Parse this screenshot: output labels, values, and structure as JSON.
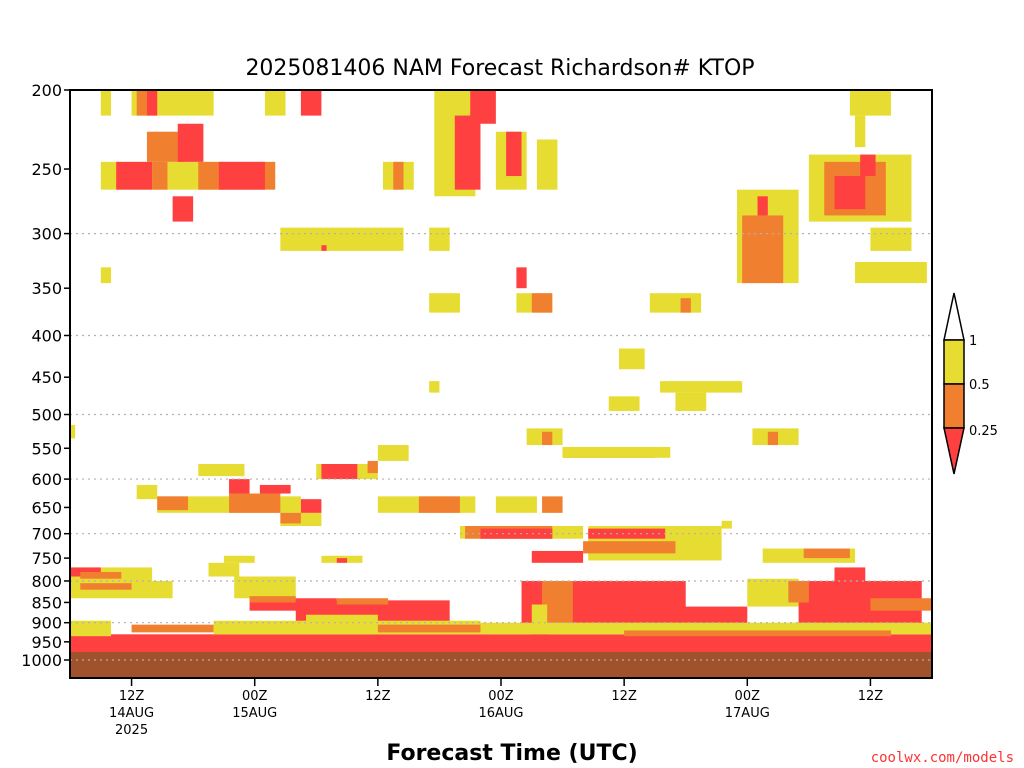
{
  "chart_data": {
    "type": "heatmap",
    "title": "2025081406 NAM Forecast Richardson# KTOP",
    "xlabel": "Forecast Time (UTC)",
    "ylabel": "",
    "credit": "coolwx.com/models",
    "credit_color": "#ff3333",
    "y_axis": {
      "scale": "log-pressure",
      "range": [
        1000,
        200
      ],
      "ticks": [
        200,
        250,
        300,
        350,
        400,
        450,
        500,
        550,
        600,
        650,
        700,
        750,
        800,
        850,
        900,
        950,
        1000
      ],
      "gridlines": [
        300,
        400,
        500,
        600,
        700,
        800,
        900,
        1000
      ]
    },
    "x_axis": {
      "unit": "hours since 2025-08-14 06Z",
      "range": [
        0,
        84
      ],
      "ticks": [
        {
          "hour": 6,
          "lines": [
            "12Z",
            "14AUG",
            "2025"
          ]
        },
        {
          "hour": 18,
          "lines": [
            "00Z",
            "15AUG"
          ]
        },
        {
          "hour": 30,
          "lines": [
            "12Z"
          ]
        },
        {
          "hour": 42,
          "lines": [
            "00Z",
            "16AUG"
          ]
        },
        {
          "hour": 54,
          "lines": [
            "12Z"
          ]
        },
        {
          "hour": 66,
          "lines": [
            "00Z",
            "17AUG"
          ]
        },
        {
          "hour": 78,
          "lines": [
            "12Z"
          ]
        }
      ]
    },
    "legend": {
      "position": "right",
      "colors": {
        "lt_025": "#ff4040",
        "025_05": "#f08030",
        "05_1": "#e6dc32",
        "ground": "#a0522d"
      },
      "labels": [
        "1",
        "0.5",
        "0.25"
      ]
    },
    "regions": [
      {
        "class": "05_1",
        "t": [
          3,
          4
        ],
        "p": [
          200,
          215
        ]
      },
      {
        "class": "05_1",
        "t": [
          6,
          14
        ],
        "p": [
          200,
          215
        ]
      },
      {
        "class": "025_05",
        "t": [
          6.5,
          7.5
        ],
        "p": [
          200,
          215
        ]
      },
      {
        "class": "lt_025",
        "t": [
          7.5,
          8.5
        ],
        "p": [
          200,
          215
        ]
      },
      {
        "class": "05_1",
        "t": [
          19,
          21
        ],
        "p": [
          200,
          215
        ]
      },
      {
        "class": "lt_025",
        "t": [
          22.5,
          24.5
        ],
        "p": [
          200,
          215
        ]
      },
      {
        "class": "05_1",
        "t": [
          3,
          15
        ],
        "p": [
          245,
          265
        ]
      },
      {
        "class": "lt_025",
        "t": [
          4.5,
          8
        ],
        "p": [
          245,
          265
        ]
      },
      {
        "class": "025_05",
        "t": [
          8,
          9.5
        ],
        "p": [
          245,
          265
        ]
      },
      {
        "class": "025_05",
        "t": [
          7.5,
          11
        ],
        "p": [
          225,
          245
        ]
      },
      {
        "class": "lt_025",
        "t": [
          10.5,
          13
        ],
        "p": [
          220,
          245
        ]
      },
      {
        "class": "lt_025",
        "t": [
          10,
          12
        ],
        "p": [
          270,
          290
        ]
      },
      {
        "class": "025_05",
        "t": [
          12.5,
          20
        ],
        "p": [
          245,
          265
        ]
      },
      {
        "class": "lt_025",
        "t": [
          14.5,
          19
        ],
        "p": [
          245,
          265
        ]
      },
      {
        "class": "05_1",
        "t": [
          20.5,
          32.5
        ],
        "p": [
          295,
          315
        ]
      },
      {
        "class": "lt_025",
        "t": [
          24.5,
          25
        ],
        "p": [
          310,
          315
        ]
      },
      {
        "class": "05_1",
        "t": [
          30.5,
          33.5
        ],
        "p": [
          245,
          265
        ]
      },
      {
        "class": "025_05",
        "t": [
          31.5,
          32.5
        ],
        "p": [
          245,
          265
        ]
      },
      {
        "class": "05_1",
        "t": [
          35,
          37
        ],
        "p": [
          295,
          315
        ]
      },
      {
        "class": "05_1",
        "t": [
          3,
          4
        ],
        "p": [
          330,
          345
        ]
      },
      {
        "class": "05_1",
        "t": [
          35.5,
          39.5
        ],
        "p": [
          200,
          270
        ]
      },
      {
        "class": "lt_025",
        "t": [
          37.5,
          40
        ],
        "p": [
          215,
          265
        ]
      },
      {
        "class": "lt_025",
        "t": [
          39,
          41.5
        ],
        "p": [
          200,
          220
        ]
      },
      {
        "class": "05_1",
        "t": [
          41.5,
          44.5
        ],
        "p": [
          225,
          265
        ]
      },
      {
        "class": "lt_025",
        "t": [
          42.5,
          44
        ],
        "p": [
          225,
          255
        ]
      },
      {
        "class": "05_1",
        "t": [
          45.5,
          47.5
        ],
        "p": [
          230,
          265
        ]
      },
      {
        "class": "05_1",
        "t": [
          35,
          38
        ],
        "p": [
          355,
          375
        ]
      },
      {
        "class": "05_1",
        "t": [
          43.5,
          47
        ],
        "p": [
          355,
          375
        ]
      },
      {
        "class": "lt_025",
        "t": [
          43.5,
          44.5
        ],
        "p": [
          330,
          350
        ]
      },
      {
        "class": "025_05",
        "t": [
          45,
          47
        ],
        "p": [
          355,
          375
        ]
      },
      {
        "class": "05_1",
        "t": [
          56.5,
          61.5
        ],
        "p": [
          355,
          375
        ]
      },
      {
        "class": "025_05",
        "t": [
          59.5,
          60.5
        ],
        "p": [
          360,
          375
        ]
      },
      {
        "class": "05_1",
        "t": [
          53.5,
          56
        ],
        "p": [
          415,
          440
        ]
      },
      {
        "class": "05_1",
        "t": [
          35,
          36
        ],
        "p": [
          455,
          470
        ]
      },
      {
        "class": "05_1",
        "t": [
          57.5,
          65.5
        ],
        "p": [
          455,
          470
        ]
      },
      {
        "class": "05_1",
        "t": [
          52.5,
          55.5
        ],
        "p": [
          475,
          495
        ]
      },
      {
        "class": "05_1",
        "t": [
          59,
          62
        ],
        "p": [
          470,
          495
        ]
      },
      {
        "class": "05_1",
        "t": [
          65,
          71
        ],
        "p": [
          265,
          345
        ]
      },
      {
        "class": "025_05",
        "t": [
          65.5,
          69.5
        ],
        "p": [
          285,
          345
        ]
      },
      {
        "class": "lt_025",
        "t": [
          67,
          68
        ],
        "p": [
          270,
          285
        ]
      },
      {
        "class": "05_1",
        "t": [
          72,
          82
        ],
        "p": [
          240,
          290
        ]
      },
      {
        "class": "025_05",
        "t": [
          73.5,
          79.5
        ],
        "p": [
          245,
          285
        ]
      },
      {
        "class": "lt_025",
        "t": [
          74.5,
          77.5
        ],
        "p": [
          255,
          280
        ]
      },
      {
        "class": "lt_025",
        "t": [
          77,
          78.5
        ],
        "p": [
          240,
          255
        ]
      },
      {
        "class": "05_1",
        "t": [
          76,
          80
        ],
        "p": [
          200,
          215
        ]
      },
      {
        "class": "05_1",
        "t": [
          76.5,
          77.5
        ],
        "p": [
          215,
          235
        ]
      },
      {
        "class": "05_1",
        "t": [
          78,
          82
        ],
        "p": [
          295,
          315
        ]
      },
      {
        "class": "05_1",
        "t": [
          76.5,
          83.5
        ],
        "p": [
          325,
          345
        ]
      },
      {
        "class": "05_1",
        "t": [
          84,
          84.5
        ],
        "p": [
          200,
          215
        ]
      },
      {
        "class": "05_1",
        "t": [
          44.5,
          48
        ],
        "p": [
          520,
          545
        ]
      },
      {
        "class": "025_05",
        "t": [
          46,
          47
        ],
        "p": [
          525,
          545
        ]
      },
      {
        "class": "025_05",
        "t": [
          48,
          57
        ],
        "p": [
          548,
          565
        ]
      },
      {
        "class": "05_1",
        "t": [
          48,
          58.5
        ],
        "p": [
          548,
          565
        ]
      },
      {
        "class": "05_1",
        "t": [
          66.5,
          71
        ],
        "p": [
          520,
          545
        ]
      },
      {
        "class": "025_05",
        "t": [
          68,
          69
        ],
        "p": [
          525,
          545
        ]
      },
      {
        "class": "05_1",
        "t": [
          12.5,
          17
        ],
        "p": [
          575,
          595
        ]
      },
      {
        "class": "05_1",
        "t": [
          6.5,
          8.5
        ],
        "p": [
          610,
          635
        ]
      },
      {
        "class": "05_1",
        "t": [
          8.5,
          22.5
        ],
        "p": [
          630,
          660
        ]
      },
      {
        "class": "025_05",
        "t": [
          8.5,
          11.5
        ],
        "p": [
          630,
          655
        ]
      },
      {
        "class": "025_05",
        "t": [
          15.5,
          20.5
        ],
        "p": [
          625,
          660
        ]
      },
      {
        "class": "lt_025",
        "t": [
          15.5,
          17.5
        ],
        "p": [
          600,
          625
        ]
      },
      {
        "class": "lt_025",
        "t": [
          18.5,
          21.5
        ],
        "p": [
          610,
          625
        ]
      },
      {
        "class": "05_1",
        "t": [
          20.5,
          24.5
        ],
        "p": [
          660,
          685
        ]
      },
      {
        "class": "025_05",
        "t": [
          20.5,
          22.5
        ],
        "p": [
          660,
          680
        ]
      },
      {
        "class": "lt_025",
        "t": [
          22.5,
          24.5
        ],
        "p": [
          635,
          660
        ]
      },
      {
        "class": "05_1",
        "t": [
          24,
          30
        ],
        "p": [
          575,
          600
        ]
      },
      {
        "class": "lt_025",
        "t": [
          24.5,
          28
        ],
        "p": [
          575,
          600
        ]
      },
      {
        "class": "025_05",
        "t": [
          29,
          30
        ],
        "p": [
          570,
          590
        ]
      },
      {
        "class": "05_1",
        "t": [
          30,
          33
        ],
        "p": [
          545,
          570
        ]
      },
      {
        "class": "05_1",
        "t": [
          30,
          39.5
        ],
        "p": [
          630,
          660
        ]
      },
      {
        "class": "025_05",
        "t": [
          34,
          38
        ],
        "p": [
          630,
          660
        ]
      },
      {
        "class": "05_1",
        "t": [
          41.5,
          45.5
        ],
        "p": [
          630,
          660
        ]
      },
      {
        "class": "025_05",
        "t": [
          46,
          48
        ],
        "p": [
          630,
          660
        ]
      },
      {
        "class": "05_1",
        "t": [
          38,
          50
        ],
        "p": [
          685,
          710
        ]
      },
      {
        "class": "025_05",
        "t": [
          38.5,
          47
        ],
        "p": [
          685,
          710
        ]
      },
      {
        "class": "lt_025",
        "t": [
          40,
          47
        ],
        "p": [
          690,
          710
        ]
      },
      {
        "class": "05_1",
        "t": [
          50.5,
          63.5
        ],
        "p": [
          685,
          755
        ]
      },
      {
        "class": "lt_025",
        "t": [
          50.5,
          58
        ],
        "p": [
          690,
          710
        ]
      },
      {
        "class": "025_05",
        "t": [
          50,
          59
        ],
        "p": [
          715,
          740
        ]
      },
      {
        "class": "lt_025",
        "t": [
          45,
          50
        ],
        "p": [
          735,
          760
        ]
      },
      {
        "class": "05_1",
        "t": [
          63.5,
          64.5
        ],
        "p": [
          675,
          690
        ]
      },
      {
        "class": "05_1",
        "t": [
          67.5,
          76.5
        ],
        "p": [
          730,
          760
        ]
      },
      {
        "class": "025_05",
        "t": [
          71.5,
          76
        ],
        "p": [
          730,
          750
        ]
      },
      {
        "class": "05_1",
        "t": [
          15,
          18
        ],
        "p": [
          745,
          760
        ]
      },
      {
        "class": "05_1",
        "t": [
          24.5,
          28.5
        ],
        "p": [
          745,
          760
        ]
      },
      {
        "class": "lt_025",
        "t": [
          26,
          27
        ],
        "p": [
          750,
          760
        ]
      },
      {
        "class": "05_1",
        "t": [
          13.5,
          16.5
        ],
        "p": [
          760,
          790
        ]
      },
      {
        "class": "05_1",
        "t": [
          0,
          8
        ],
        "p": [
          770,
          800
        ]
      },
      {
        "class": "lt_025",
        "t": [
          0,
          3
        ],
        "p": [
          770,
          790
        ]
      },
      {
        "class": "025_05",
        "t": [
          1,
          5
        ],
        "p": [
          780,
          795
        ]
      },
      {
        "class": "05_1",
        "t": [
          0,
          10
        ],
        "p": [
          800,
          840
        ]
      },
      {
        "class": "025_05",
        "t": [
          1,
          6
        ],
        "p": [
          805,
          820
        ]
      },
      {
        "class": "05_1",
        "t": [
          16,
          22
        ],
        "p": [
          790,
          840
        ]
      },
      {
        "class": "lt_025",
        "t": [
          17.5,
          26
        ],
        "p": [
          840,
          870
        ]
      },
      {
        "class": "025_05",
        "t": [
          17.5,
          22
        ],
        "p": [
          835,
          850
        ]
      },
      {
        "class": "lt_025",
        "t": [
          22,
          37
        ],
        "p": [
          845,
          905
        ]
      },
      {
        "class": "025_05",
        "t": [
          26,
          31
        ],
        "p": [
          840,
          855
        ]
      },
      {
        "class": "05_1",
        "t": [
          23,
          30
        ],
        "p": [
          880,
          920
        ]
      },
      {
        "class": "lt_025",
        "t": [
          44,
          60
        ],
        "p": [
          800,
          920
        ]
      },
      {
        "class": "025_05",
        "t": [
          46,
          49
        ],
        "p": [
          800,
          920
        ]
      },
      {
        "class": "05_1",
        "t": [
          45,
          46.5
        ],
        "p": [
          855,
          940
        ]
      },
      {
        "class": "lt_025",
        "t": [
          59,
          66
        ],
        "p": [
          860,
          920
        ]
      },
      {
        "class": "05_1",
        "t": [
          66,
          71
        ],
        "p": [
          795,
          860
        ]
      },
      {
        "class": "lt_025",
        "t": [
          71,
          83
        ],
        "p": [
          800,
          920
        ]
      },
      {
        "class": "025_05",
        "t": [
          70,
          72
        ],
        "p": [
          800,
          850
        ]
      },
      {
        "class": "lt_025",
        "t": [
          74.5,
          77.5
        ],
        "p": [
          770,
          800
        ]
      },
      {
        "class": "025_05",
        "t": [
          78,
          84
        ],
        "p": [
          840,
          870
        ]
      },
      {
        "class": "lt_025",
        "t": [
          0,
          84
        ],
        "p": [
          930,
          980
        ]
      },
      {
        "class": "05_1",
        "t": [
          0,
          4
        ],
        "p": [
          895,
          935
        ]
      },
      {
        "class": "025_05",
        "t": [
          6,
          14
        ],
        "p": [
          905,
          925
        ]
      },
      {
        "class": "05_1",
        "t": [
          14,
          40
        ],
        "p": [
          895,
          930
        ]
      },
      {
        "class": "025_05",
        "t": [
          30,
          40
        ],
        "p": [
          905,
          925
        ]
      },
      {
        "class": "05_1",
        "t": [
          40,
          84
        ],
        "p": [
          900,
          930
        ]
      },
      {
        "class": "025_05",
        "t": [
          54,
          80
        ],
        "p": [
          920,
          935
        ]
      },
      {
        "class": "lt_025",
        "t": [
          84,
          84.5
        ],
        "p": [
          760,
          780
        ]
      },
      {
        "class": "05_1",
        "t": [
          0,
          0.5
        ],
        "p": [
          515,
          535
        ]
      },
      {
        "class": "05_1",
        "t": [
          84,
          84.5
        ],
        "p": [
          595,
          610
        ]
      }
    ]
  }
}
